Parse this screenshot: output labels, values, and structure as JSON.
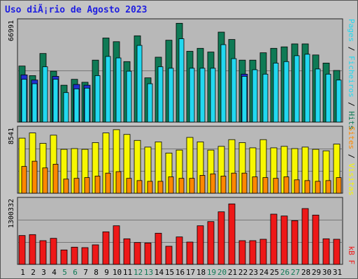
{
  "title": "Uso diÃ¡rio de Agosto 2023",
  "colors": {
    "hits": "#0f7a55",
    "files": "#22d8f0",
    "pages": "#2030d0",
    "visits": "#f7f700",
    "sites": "#ff8800",
    "kbf": "#ee1818",
    "title": "#2020e0",
    "day_normal": "#000000",
    "day_weekend": "#0f7a55"
  },
  "chart_data": [
    {
      "type": "bar",
      "title": "Uso diÃ¡rio de Agosto 2023",
      "ylabel_parts": [
        {
          "text": "Pages",
          "color_key": "files"
        },
        {
          "text": " / ",
          "color_key": "day_normal"
        },
        {
          "text": "Ficheiros",
          "color_key": "files"
        },
        {
          "text": " / ",
          "color_key": "day_normal"
        },
        {
          "text": "Hits",
          "color_key": "hits"
        }
      ],
      "ymax_label": "66991",
      "ylim": [
        0,
        70000
      ],
      "categories": [
        "1",
        "2",
        "3",
        "4",
        "5",
        "6",
        "7",
        "8",
        "9",
        "10",
        "11",
        "12",
        "13",
        "14",
        "15",
        "16",
        "17",
        "18",
        "19",
        "20",
        "21",
        "22",
        "23",
        "24",
        "25",
        "26",
        "27",
        "28",
        "29",
        "30",
        "31"
      ],
      "series": [
        {
          "name": "Hits",
          "color_key": "hits",
          "values": [
            38000,
            31500,
            46500,
            34500,
            25000,
            29000,
            27000,
            42000,
            57000,
            54500,
            41000,
            58500,
            30000,
            44000,
            55500,
            66991,
            48000,
            50000,
            47500,
            61000,
            56000,
            42000,
            42000,
            47000,
            50000,
            51000,
            53000,
            53000,
            45500,
            40000,
            35000
          ]
        },
        {
          "name": "Ficheiros",
          "color_key": "files",
          "values": [
            29000,
            26000,
            37500,
            29000,
            20000,
            22500,
            23000,
            31500,
            44500,
            43500,
            34500,
            52000,
            26000,
            37500,
            36500,
            56500,
            36500,
            36500,
            36500,
            52500,
            43000,
            31000,
            35500,
            32500,
            40000,
            41000,
            45000,
            46000,
            36000,
            32500,
            28500
          ]
        },
        {
          "name": "Pages",
          "color_key": "pages",
          "values": [
            32000,
            28500,
            0,
            31000,
            0,
            25500,
            25000,
            0,
            0,
            0,
            0,
            0,
            0,
            0,
            0,
            0,
            0,
            0,
            0,
            0,
            0,
            32500,
            0,
            0,
            0,
            0,
            0,
            0,
            0,
            0,
            0
          ]
        }
      ]
    },
    {
      "type": "bar",
      "ylabel_parts": [
        {
          "text": "Sites",
          "color_key": "sites"
        },
        {
          "text": " / ",
          "color_key": "day_normal"
        },
        {
          "text": "Visitas",
          "color_key": "visits"
        }
      ],
      "ymax_label": "8541",
      "ylim": [
        0,
        9000
      ],
      "categories": [
        "1",
        "2",
        "3",
        "4",
        "5",
        "6",
        "7",
        "8",
        "9",
        "10",
        "11",
        "12",
        "13",
        "14",
        "15",
        "16",
        "17",
        "18",
        "19",
        "20",
        "21",
        "22",
        "23",
        "24",
        "25",
        "26",
        "27",
        "28",
        "29",
        "30",
        "31"
      ],
      "series": [
        {
          "name": "Visitas",
          "color_key": "visits",
          "values": [
            7400,
            8100,
            6700,
            7800,
            5900,
            6000,
            5900,
            6800,
            8100,
            8541,
            7900,
            7100,
            6200,
            6900,
            5400,
            5800,
            7500,
            6900,
            5800,
            6300,
            7200,
            6800,
            6100,
            7200,
            6100,
            6300,
            6000,
            6200,
            5900,
            5700,
            6600
          ]
        },
        {
          "name": "Sites",
          "color_key": "sites",
          "values": [
            3600,
            4300,
            3400,
            3900,
            1900,
            2000,
            2100,
            2300,
            2700,
            2900,
            2000,
            1700,
            1600,
            1600,
            2200,
            2000,
            2000,
            2400,
            2600,
            2300,
            2700,
            2700,
            2200,
            2100,
            2000,
            2200,
            1800,
            1700,
            1600,
            1700,
            2100
          ]
        }
      ]
    },
    {
      "type": "bar",
      "ylabel_parts": [
        {
          "text": "kB F",
          "color_key": "kbf"
        }
      ],
      "ymax_label": "1300332",
      "ylim": [
        0,
        1440000
      ],
      "categories": [
        "1",
        "2",
        "3",
        "4",
        "5",
        "6",
        "7",
        "8",
        "9",
        "10",
        "11",
        "12",
        "13",
        "14",
        "15",
        "16",
        "17",
        "18",
        "19",
        "20",
        "21",
        "22",
        "23",
        "24",
        "25",
        "26",
        "27",
        "28",
        "29",
        "30",
        "31"
      ],
      "weekend_days": [
        5,
        6,
        12,
        13,
        19,
        20,
        26,
        27
      ],
      "series": [
        {
          "name": "kB F",
          "color_key": "kbf",
          "values": [
            620000,
            640000,
            510000,
            560000,
            310000,
            370000,
            360000,
            420000,
            700000,
            830000,
            550000,
            470000,
            460000,
            670000,
            390000,
            590000,
            480000,
            830000,
            920000,
            1130000,
            1300332,
            510000,
            510000,
            540000,
            1080000,
            1040000,
            940000,
            1200000,
            1060000,
            550000,
            540000
          ]
        }
      ]
    }
  ]
}
